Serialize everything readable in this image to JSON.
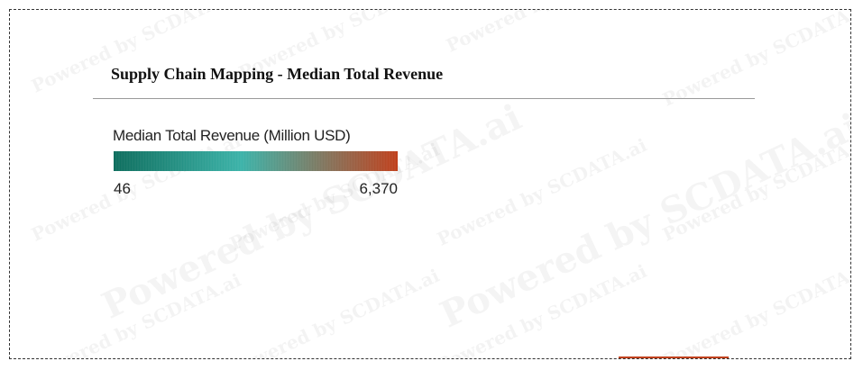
{
  "title": "Supply Chain Mapping - Median Total Revenue",
  "watermark": {
    "text": "Powered by SCDATA.ai"
  },
  "legend": {
    "title": "Median Total Revenue (Million USD)",
    "min_label": "46",
    "max_label": "6,370",
    "color_low": "#0e6e5e",
    "color_mid": "#3cb3a9",
    "color_high": "#c0401c"
  },
  "chart_data": {
    "type": "heatmap",
    "title": "Supply Chain Mapping - Median Total Revenue",
    "color_scale": {
      "label": "Median Total Revenue (Million USD)",
      "min": 46,
      "max": 6370,
      "colors": [
        "#0e6e5e",
        "#3cb3a9",
        "#c0401c"
      ]
    }
  },
  "colors": {
    "fragment": "#c0401c"
  }
}
